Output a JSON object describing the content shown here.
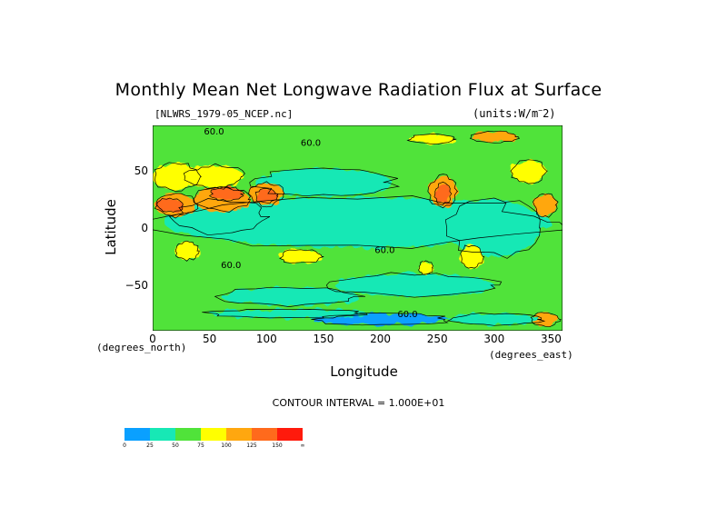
{
  "chart_data": {
    "type": "heatmap",
    "title": "Monthly Mean Net Longwave Radiation Flux at Surface",
    "subtitle_left": "[NLWRS_1979-05_NCEP.nc]",
    "subtitle_right": "(units:W/m^-2)",
    "xlabel": "Longitude",
    "ylabel": "Latitude",
    "x_units": "(degrees_east)",
    "y_units": "(degrees_north)",
    "contour_interval_text": "CONTOUR INTERVAL = 1.000E+01",
    "xlim": [
      0,
      360
    ],
    "ylim": [
      -90,
      90
    ],
    "x_ticks": [
      0,
      50,
      100,
      150,
      200,
      250,
      300,
      350
    ],
    "y_ticks": [
      50,
      0,
      -50
    ],
    "contour_labels": [
      "60.0",
      "60.0",
      "60.0",
      "60.0",
      "60.0"
    ],
    "color_levels": [
      {
        "label": "0",
        "color": "#0aa0ff"
      },
      {
        "label": "25",
        "color": "#17e8b5"
      },
      {
        "label": "50",
        "color": "#50e33a"
      },
      {
        "label": "75",
        "color": "#ffff00"
      },
      {
        "label": "100",
        "color": "#ffa70f"
      },
      {
        "label": "125",
        "color": "#ff6a1c"
      },
      {
        "label": "150",
        "color": "#ff1a0c"
      },
      {
        "label": "∞",
        "color": ""
      }
    ]
  }
}
